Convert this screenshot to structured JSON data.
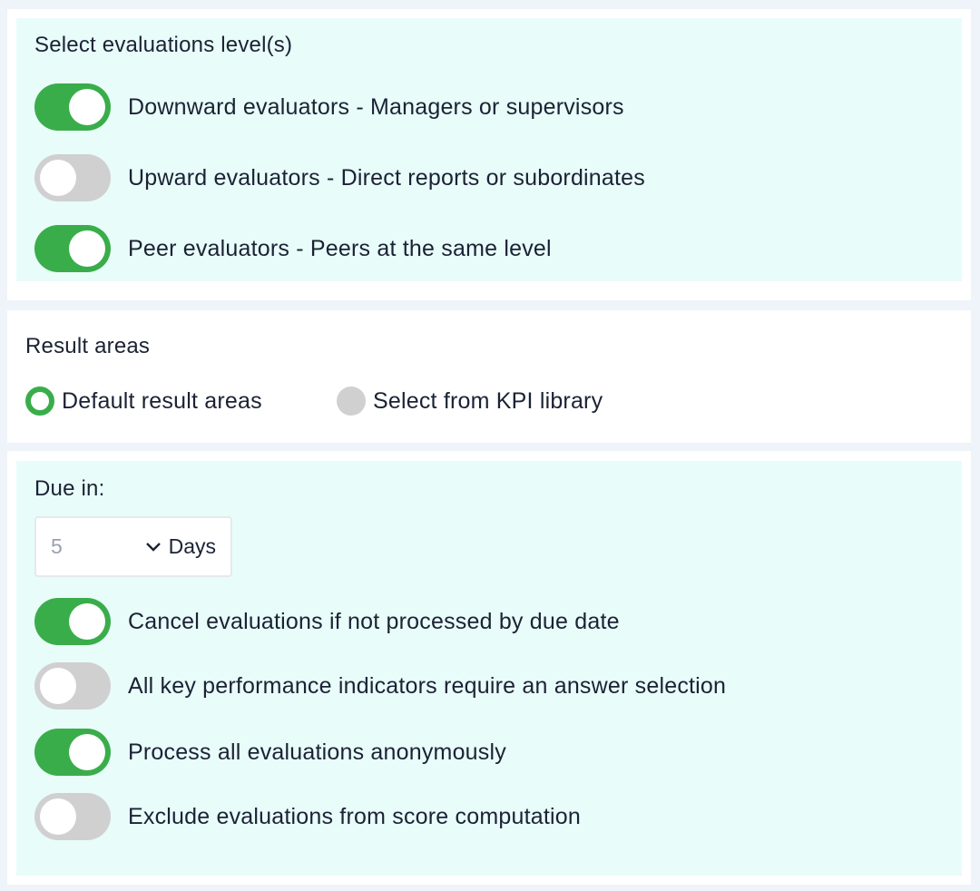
{
  "colors": {
    "toggle_on": "#3aad4b",
    "toggle_off": "#d0d0d0",
    "section_bg": "#e8fcf9",
    "page_bg": "#eff3fa"
  },
  "levels": {
    "title": "Select evaluations level(s)",
    "items": [
      {
        "label": "Downward evaluators - Managers or supervisors",
        "on": true
      },
      {
        "label": "Upward evaluators - Direct reports or subordinates",
        "on": false
      },
      {
        "label": "Peer evaluators - Peers at the same level",
        "on": true
      }
    ]
  },
  "result_areas": {
    "title": "Result areas",
    "options": [
      {
        "label": "Default result areas",
        "selected": true
      },
      {
        "label": "Select from KPI library",
        "selected": false
      }
    ]
  },
  "due": {
    "title": "Due in:",
    "value": "5",
    "unit": "Days",
    "chevron_icon": "chevron-down-icon",
    "items": [
      {
        "label": "Cancel evaluations if not processed by due date",
        "on": true
      },
      {
        "label": "All key performance indicators require an answer selection",
        "on": false
      },
      {
        "label": "Process all evaluations anonymously",
        "on": true
      },
      {
        "label": "Exclude evaluations from score computation",
        "on": false
      }
    ]
  }
}
